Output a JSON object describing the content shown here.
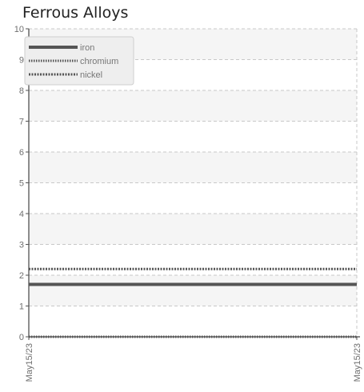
{
  "chart_data": {
    "type": "line",
    "title": "Ferrous Alloys",
    "xlabel": "",
    "ylabel": "",
    "x": [
      "May15/23",
      "May15/23"
    ],
    "ylim": [
      0,
      10
    ],
    "y_ticks": [
      "0",
      "1",
      "2",
      "3",
      "4",
      "5",
      "6",
      "7",
      "8",
      "9",
      "10"
    ],
    "grid": true,
    "legend_position": "top-left",
    "series": [
      {
        "name": "iron",
        "values": [
          1.7,
          1.7
        ],
        "color": "#555555",
        "style": "solid"
      },
      {
        "name": "chromium",
        "values": [
          0,
          0
        ],
        "color": "#555555",
        "style": "dotted"
      },
      {
        "name": "nickel",
        "values": [
          2.2,
          2.2
        ],
        "color": "#555555",
        "style": "dashed"
      }
    ]
  }
}
